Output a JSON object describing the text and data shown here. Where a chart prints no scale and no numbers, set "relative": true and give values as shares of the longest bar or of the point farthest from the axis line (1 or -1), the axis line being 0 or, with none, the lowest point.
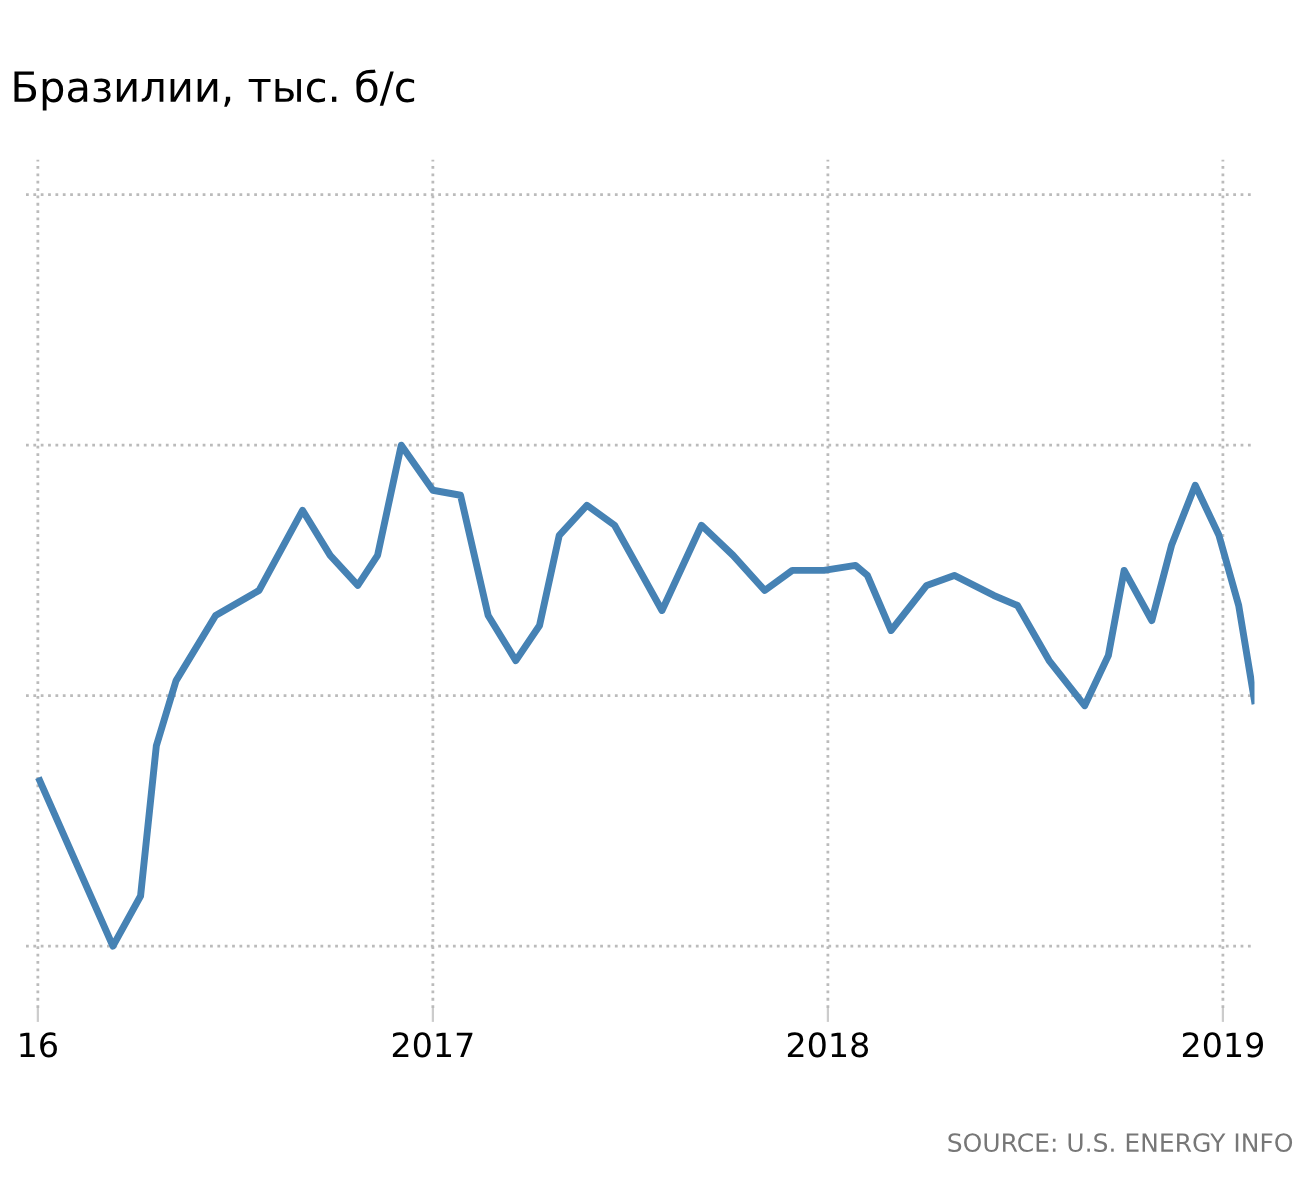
{
  "chart_data": {
    "type": "line",
    "title": "Бразилии, тыс. б/с",
    "relative": true,
    "x": [
      2016.005,
      2016.19,
      2016.26,
      2016.3,
      2016.35,
      2016.45,
      2016.56,
      2016.67,
      2016.74,
      2016.81,
      2016.86,
      2016.92,
      2017.0,
      2017.07,
      2017.14,
      2017.21,
      2017.27,
      2017.32,
      2017.39,
      2017.46,
      2017.58,
      2017.68,
      2017.76,
      2017.84,
      2017.91,
      2017.99,
      2018.07,
      2018.1,
      2018.16,
      2018.25,
      2018.32,
      2018.42,
      2018.48,
      2018.56,
      2018.65,
      2018.71,
      2018.75,
      2018.82,
      2018.87,
      2018.93,
      2018.99,
      2019.04,
      2019.08
    ],
    "series": [
      {
        "color": "#4682b4",
        "values": [
          0.33,
          0,
          0.1,
          0.4,
          0.53,
          0.66,
          0.71,
          0.87,
          0.78,
          0.72,
          0.78,
          1,
          0.91,
          0.9,
          0.66,
          0.57,
          0.64,
          0.82,
          0.88,
          0.84,
          0.67,
          0.84,
          0.78,
          0.71,
          0.75,
          0.75,
          0.76,
          0.74,
          0.63,
          0.72,
          0.74,
          0.7,
          0.68,
          0.57,
          0.48,
          0.58,
          0.75,
          0.65,
          0.8,
          0.92,
          0.82,
          0.68,
          0.49
        ]
      }
    ],
    "xlim": [
      2015.97,
      2019.08
    ],
    "xticks": [
      {
        "value": 2016,
        "label": "16"
      },
      2017,
      2018,
      2019
    ],
    "grid": true,
    "marker": "none",
    "line_style": "solid",
    "annotations": [
      "SOURCE: U.S. ENERGY INFO"
    ]
  }
}
